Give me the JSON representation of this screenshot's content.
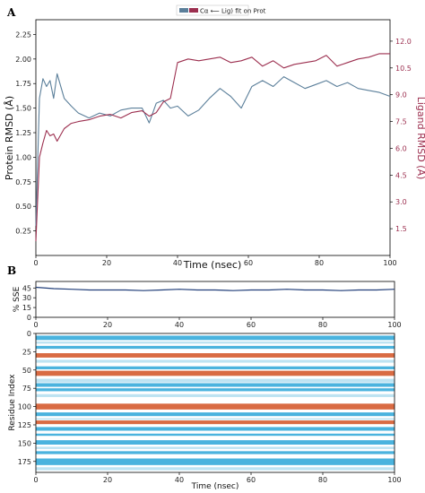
{
  "panels": {
    "a": "A",
    "b": "B"
  },
  "chart_data": [
    {
      "type": "line",
      "panel": "A",
      "legend": "Cα ⟵ Lig) fit on Prot",
      "xlabel": "Time (nsec)",
      "ylabel": "Protein RMSD (Å)",
      "y2label": "Ligand RMSD (Å)",
      "xlim": [
        0,
        100
      ],
      "ylim": [
        0,
        2.4
      ],
      "y2lim": [
        0,
        13.2
      ],
      "x_ticks": [
        0,
        20,
        40,
        60,
        80,
        100
      ],
      "y_ticks": [
        "0.25",
        "0.50",
        "0.75",
        "1.00",
        "1.25",
        "1.50",
        "1.75",
        "2.00",
        "2.25"
      ],
      "y2_ticks": [
        "1.5",
        "3.0",
        "4.5",
        "6.0",
        "7.5",
        "9.0",
        "10.5",
        "12.0"
      ],
      "colors": {
        "protein": "#5b7f9a",
        "ligand": "#9c2f4f"
      },
      "series": [
        {
          "name": "Cα",
          "axis": "left",
          "x": [
            0,
            1,
            2,
            3,
            4,
            5,
            6,
            8,
            10,
            12,
            15,
            18,
            21,
            24,
            27,
            30,
            32,
            34,
            36,
            38,
            40,
            43,
            46,
            49,
            52,
            55,
            58,
            61,
            64,
            67,
            70,
            73,
            76,
            79,
            82,
            85,
            88,
            91,
            94,
            97,
            100
          ],
          "values": [
            0.3,
            1.6,
            1.8,
            1.72,
            1.78,
            1.6,
            1.85,
            1.6,
            1.52,
            1.45,
            1.4,
            1.45,
            1.42,
            1.48,
            1.5,
            1.5,
            1.35,
            1.55,
            1.58,
            1.5,
            1.52,
            1.42,
            1.48,
            1.6,
            1.7,
            1.62,
            1.5,
            1.72,
            1.78,
            1.72,
            1.82,
            1.76,
            1.7,
            1.74,
            1.78,
            1.72,
            1.76,
            1.7,
            1.68,
            1.66,
            1.62
          ]
        },
        {
          "name": "Lig) fit on Prot",
          "axis": "right",
          "x": [
            0,
            1,
            2,
            3,
            4,
            5,
            6,
            8,
            10,
            12,
            15,
            18,
            21,
            24,
            27,
            30,
            32,
            34,
            36,
            38,
            40,
            43,
            46,
            49,
            52,
            55,
            58,
            61,
            64,
            67,
            70,
            73,
            76,
            79,
            82,
            85,
            88,
            91,
            94,
            97,
            100
          ],
          "values": [
            0.8,
            5.5,
            6.3,
            7.0,
            6.7,
            6.8,
            6.4,
            7.1,
            7.4,
            7.5,
            7.6,
            7.8,
            7.9,
            7.7,
            8.0,
            8.1,
            7.8,
            8.0,
            8.6,
            8.8,
            10.8,
            11.0,
            10.9,
            11.0,
            11.1,
            10.8,
            10.9,
            11.1,
            10.6,
            10.9,
            10.5,
            10.7,
            10.8,
            10.9,
            11.2,
            10.6,
            10.8,
            11.0,
            11.1,
            11.3,
            11.3
          ]
        }
      ]
    },
    {
      "type": "line",
      "panel": "B-top",
      "ylabel": "% SSE",
      "xlim": [
        0,
        100
      ],
      "ylim": [
        0,
        55
      ],
      "x_ticks": [
        0,
        20,
        40,
        60,
        80,
        100
      ],
      "y_ticks": [
        "0",
        "15",
        "30",
        "45"
      ],
      "color": "#223f7a",
      "series": [
        {
          "x": [
            0,
            5,
            10,
            15,
            20,
            25,
            30,
            35,
            40,
            45,
            50,
            55,
            60,
            65,
            70,
            75,
            80,
            85,
            90,
            95,
            100
          ],
          "values": [
            46,
            44,
            43,
            42,
            42,
            42,
            41,
            42,
            43,
            42,
            42,
            41,
            42,
            42,
            43,
            42,
            42,
            41,
            42,
            42,
            43
          ]
        }
      ]
    },
    {
      "type": "heatmap",
      "panel": "B-bottom",
      "xlabel": "Time (nsec)",
      "ylabel": "Residue Index",
      "xlim": [
        0,
        100
      ],
      "ylim": [
        0,
        190
      ],
      "x_ticks": [
        0,
        20,
        40,
        60,
        80,
        100
      ],
      "y_ticks": [
        "0",
        "25",
        "50",
        "75",
        "100",
        "125",
        "150",
        "175"
      ],
      "colors": {
        "helix": "#d96b43",
        "strand": "#4ab3de",
        "faint_strand": "#bde3f2"
      },
      "bands": [
        {
          "start": 3,
          "end": 9,
          "ss": "strand"
        },
        {
          "start": 11,
          "end": 14,
          "ss": "faint_strand"
        },
        {
          "start": 17,
          "end": 21,
          "ss": "strand"
        },
        {
          "start": 27,
          "end": 33,
          "ss": "helix"
        },
        {
          "start": 36,
          "end": 40,
          "ss": "faint_strand"
        },
        {
          "start": 45,
          "end": 49,
          "ss": "strand"
        },
        {
          "start": 51,
          "end": 58,
          "ss": "helix"
        },
        {
          "start": 62,
          "end": 67,
          "ss": "faint_strand"
        },
        {
          "start": 68,
          "end": 73,
          "ss": "strand"
        },
        {
          "start": 75,
          "end": 79,
          "ss": "strand"
        },
        {
          "start": 83,
          "end": 87,
          "ss": "faint_strand"
        },
        {
          "start": 96,
          "end": 104,
          "ss": "helix"
        },
        {
          "start": 108,
          "end": 113,
          "ss": "strand"
        },
        {
          "start": 116,
          "end": 118,
          "ss": "faint_strand"
        },
        {
          "start": 119,
          "end": 124,
          "ss": "helix"
        },
        {
          "start": 128,
          "end": 133,
          "ss": "strand"
        },
        {
          "start": 137,
          "end": 140,
          "ss": "strand"
        },
        {
          "start": 146,
          "end": 152,
          "ss": "strand"
        },
        {
          "start": 155,
          "end": 158,
          "ss": "faint_strand"
        },
        {
          "start": 161,
          "end": 165,
          "ss": "strand"
        },
        {
          "start": 171,
          "end": 180,
          "ss": "strand"
        },
        {
          "start": 183,
          "end": 187,
          "ss": "faint_strand"
        }
      ]
    }
  ]
}
